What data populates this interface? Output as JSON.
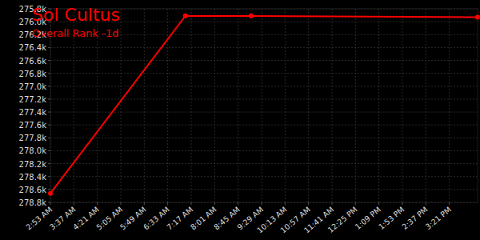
{
  "chart_data": {
    "type": "line",
    "title": "Sol Cultus",
    "subtitle": "Overall Rank -1d",
    "x": [
      173,
      426,
      549,
      974
    ],
    "series": [
      {
        "name": "Overall Rank",
        "color": "#ff0000",
        "values": [
          278660,
          275910,
          275910,
          275930
        ],
        "marker": "circle",
        "line_style": "solid"
      }
    ],
    "xlim": [
      173,
      974
    ],
    "xticks": [
      {
        "value": 173,
        "label": "2:53 AM"
      },
      {
        "value": 217,
        "label": "3:37 AM"
      },
      {
        "value": 261,
        "label": "4:21 AM"
      },
      {
        "value": 305,
        "label": "5:05 AM"
      },
      {
        "value": 349,
        "label": "5:49 AM"
      },
      {
        "value": 393,
        "label": "6:33 AM"
      },
      {
        "value": 437,
        "label": "7:17 AM"
      },
      {
        "value": 481,
        "label": "8:01 AM"
      },
      {
        "value": 525,
        "label": "8:45 AM"
      },
      {
        "value": 569,
        "label": "9:29 AM"
      },
      {
        "value": 613,
        "label": "10:13 AM"
      },
      {
        "value": 657,
        "label": "10:57 AM"
      },
      {
        "value": 701,
        "label": "11:41 AM"
      },
      {
        "value": 745,
        "label": "12:25 PM"
      },
      {
        "value": 789,
        "label": "1:09 PM"
      },
      {
        "value": 833,
        "label": "1:53 PM"
      },
      {
        "value": 877,
        "label": "2:37 PM"
      },
      {
        "value": 921,
        "label": "3:21 PM"
      }
    ],
    "ylim": [
      278800,
      275800
    ],
    "yticks": [
      {
        "value": 275800,
        "label": "275.8k"
      },
      {
        "value": 276000,
        "label": "276.0k"
      },
      {
        "value": 276200,
        "label": "276.2k"
      },
      {
        "value": 276400,
        "label": "276.4k"
      },
      {
        "value": 276600,
        "label": "276.6k"
      },
      {
        "value": 276800,
        "label": "276.8k"
      },
      {
        "value": 277000,
        "label": "277.0k"
      },
      {
        "value": 277200,
        "label": "277.2k"
      },
      {
        "value": 277400,
        "label": "277.4k"
      },
      {
        "value": 277600,
        "label": "277.6k"
      },
      {
        "value": 277800,
        "label": "277.8k"
      },
      {
        "value": 278000,
        "label": "278.0k"
      },
      {
        "value": 278200,
        "label": "278.2k"
      },
      {
        "value": 278400,
        "label": "278.4k"
      },
      {
        "value": 278600,
        "label": "278.6k"
      },
      {
        "value": 278800,
        "label": "278.8k"
      }
    ],
    "grid": true
  }
}
